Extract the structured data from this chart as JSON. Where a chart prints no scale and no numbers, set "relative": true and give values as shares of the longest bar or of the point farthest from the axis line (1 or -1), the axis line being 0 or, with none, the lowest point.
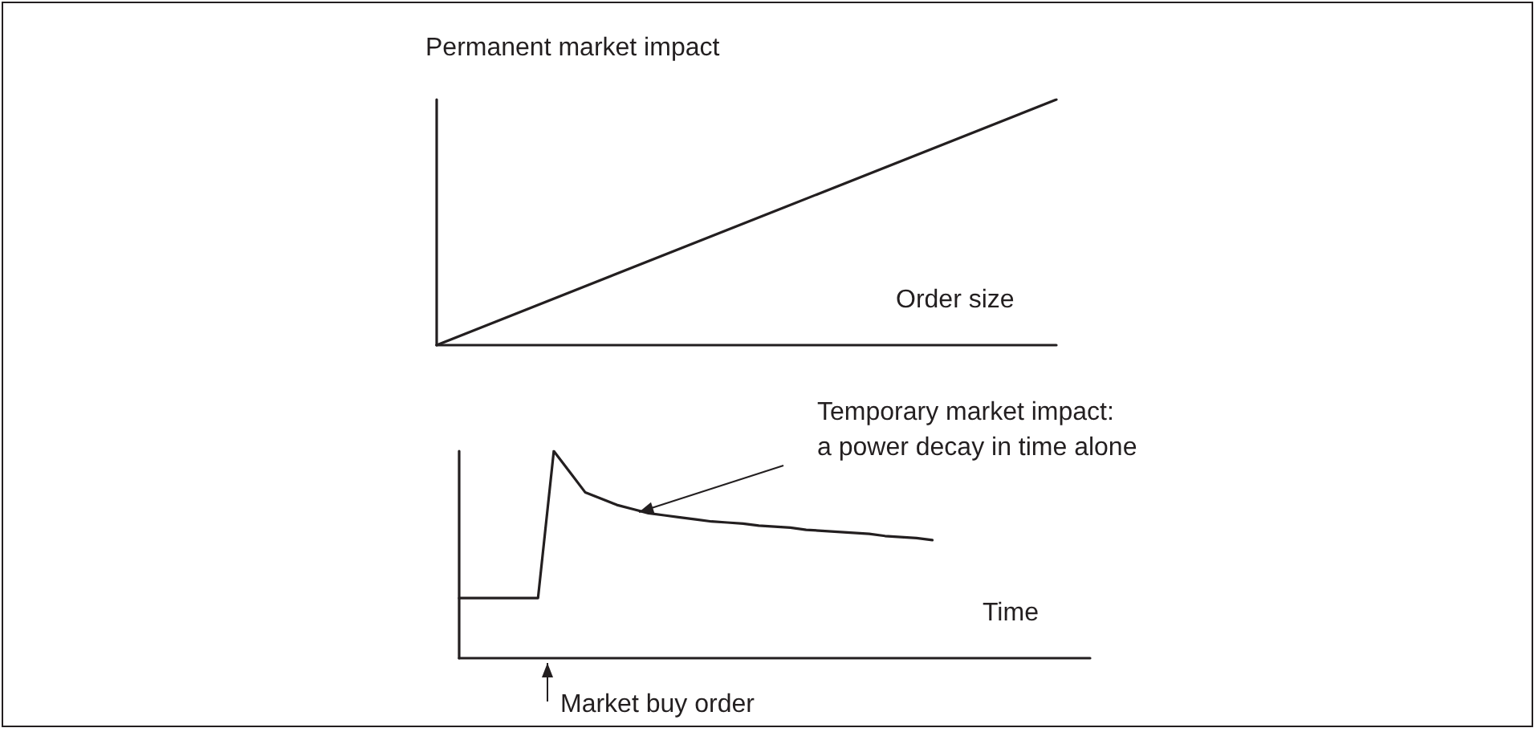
{
  "chart_data": [
    {
      "type": "line",
      "relative": true,
      "ylabel": "Permanent market impact",
      "xlabel": "Order size",
      "categories": [
        null,
        null
      ],
      "values": [
        0,
        1
      ],
      "color": "#231f20",
      "marker": "none",
      "grid": false
    },
    {
      "type": "line",
      "relative": true,
      "xlabel": "Time",
      "annotations": [
        "Temporary market impact:\na power decay in time alone",
        "Market buy order"
      ],
      "categories": [
        null,
        null,
        null,
        null,
        null,
        null,
        null,
        null,
        null,
        null,
        null,
        null,
        null,
        null,
        null,
        null,
        null,
        null,
        null,
        null,
        null,
        null,
        null,
        null,
        null,
        null,
        null,
        null,
        null,
        null,
        null,
        null,
        null,
        null,
        null,
        null,
        null,
        null,
        null,
        null,
        null
      ],
      "values": [
        0.29,
        0.29,
        0.29,
        0.29,
        0.29,
        0.29,
        1.0,
        0.9,
        0.8,
        0.77,
        0.74,
        0.72,
        0.7,
        0.69,
        0.68,
        0.67,
        0.66,
        0.655,
        0.65,
        0.64,
        0.635,
        0.63,
        0.62,
        0.615,
        0.61,
        0.605,
        0.6,
        0.59,
        0.585,
        0.58,
        0.57,
        null,
        null,
        null,
        null,
        null,
        null,
        null,
        null,
        null,
        null
      ],
      "color": "#231f20",
      "marker": "none",
      "grid": false
    }
  ]
}
